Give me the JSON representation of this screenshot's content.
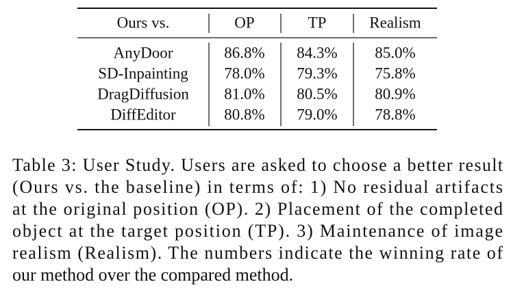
{
  "table": {
    "header": [
      "Ours vs.",
      "OP",
      "TP",
      "Realism"
    ],
    "rows": [
      [
        "AnyDoor",
        "86.8%",
        "84.3%",
        "85.0%"
      ],
      [
        "SD-Inpainting",
        "78.0%",
        "79.3%",
        "75.8%"
      ],
      [
        "DragDiffusion",
        "81.0%",
        "80.5%",
        "80.9%"
      ],
      [
        "DiffEditor",
        "80.8%",
        "79.0%",
        "78.8%"
      ]
    ]
  },
  "caption": {
    "lines": [
      "Table 3: User Study. Users are asked to choose a better result",
      "(Ours vs. the baseline) in terms of: 1) No residual artifacts",
      "at the original position (OP). 2) Placement of the completed",
      "object at the target position (TP). 3) Maintenance of image",
      "realism (Realism). The numbers indicate the winning rate of",
      "our method over the compared method."
    ]
  }
}
